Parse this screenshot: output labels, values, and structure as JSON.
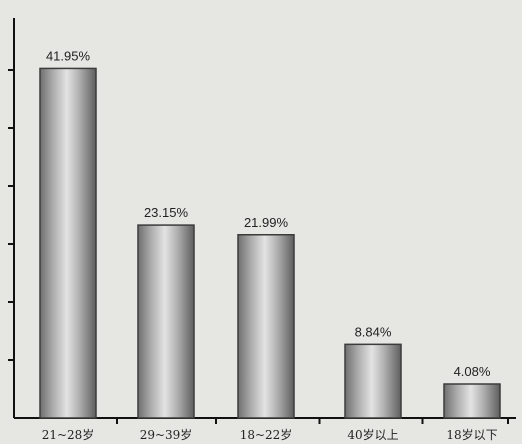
{
  "chart_data": {
    "type": "bar",
    "categories": [
      "21~28岁",
      "29~39岁",
      "18~22岁",
      "40岁以上",
      "18岁以下"
    ],
    "values": [
      41.95,
      23.15,
      21.99,
      8.84,
      4.08
    ],
    "value_labels": [
      "41.95%",
      "23.15%",
      "21.99%",
      "8.84%",
      "4.08%"
    ],
    "title": "",
    "xlabel": "",
    "ylabel": "",
    "ylim": [
      0,
      48
    ],
    "grid": false,
    "bar_color": "#9a9a9a"
  }
}
